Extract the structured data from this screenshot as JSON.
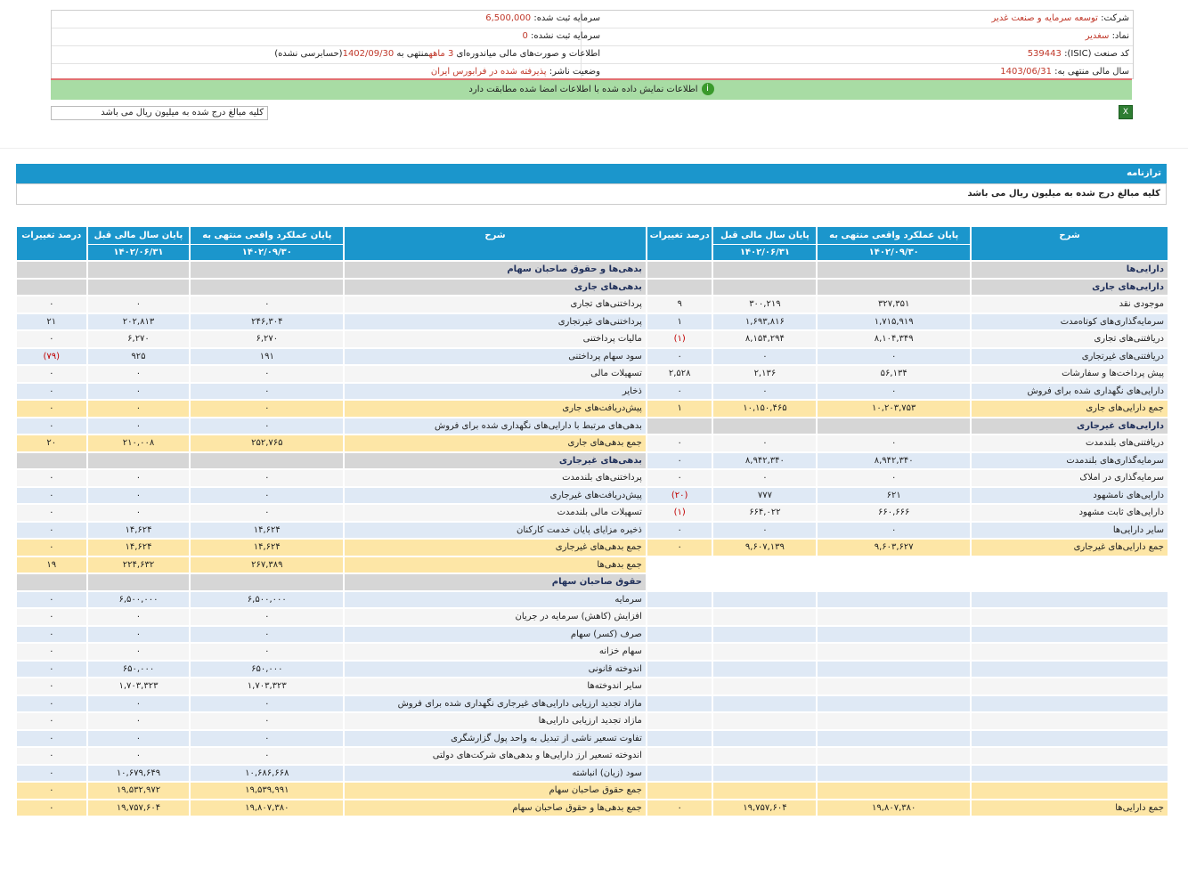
{
  "info": {
    "company_label": "شرکت:",
    "company": "توسعه سرمایه و صنعت غدیر",
    "symbol_label": "نماد:",
    "symbol": "سغدیر",
    "isic_label": "کد صنعت (ISIC):",
    "isic": "539443",
    "fiscal_label": "سال مالی منتهی به:",
    "fiscal": "1403/06/31",
    "reg_capital_label": "سرمایه ثبت شده:",
    "reg_capital": "6,500,000",
    "unreg_capital_label": "سرمایه ثبت نشده:",
    "unreg_capital": "0",
    "report_prefix": "اطلاعات و صورت‌های مالی میاندوره‌ای",
    "report_period": "3 ماهه",
    "report_mid": "منتهی به",
    "report_date": "1402/09/30",
    "report_suffix": "(حسابرسی نشده)",
    "publisher_label": "وضعیت ناشر:",
    "publisher": "پذیرفته شده در فرابورس ایران"
  },
  "banner": "اطلاعات نمایش داده شده با اطلاعات امضا شده مطابقت دارد",
  "note": "کلیه مبالغ درج شده به میلیون ریال می باشد",
  "panel": {
    "title": "ترازنامه",
    "subtitle": "کلیه مبالغ درج شده به میلیون ریال می باشد"
  },
  "headers": {
    "desc": "شرح",
    "current": "پایان عملکرد واقعی منتهی به",
    "current_date": "۱۴۰۲/۰۹/۳۰",
    "prev": "پایان سال مالی قبل",
    "prev_date": "۱۴۰۲/۰۶/۳۱",
    "pct": "درصد تغییرات"
  },
  "rows": [
    {
      "t": "head",
      "r": [
        "دارایی‌ها",
        "",
        "",
        ""
      ],
      "l": [
        "بدهی‌ها و حقوق صاحبان سهام",
        "",
        "",
        ""
      ]
    },
    {
      "t": "head",
      "r": [
        "دارایی‌های جاری",
        "",
        "",
        ""
      ],
      "l": [
        "بدهی‌های جاری",
        "",
        "",
        ""
      ]
    },
    {
      "t": "white",
      "r": [
        "موجودی نقد",
        "۳۲۷,۳۵۱",
        "۳۰۰,۲۱۹",
        "۹"
      ],
      "l": [
        "پرداختنی‌های تجاری",
        "۰",
        "۰",
        "۰"
      ]
    },
    {
      "t": "blue",
      "r": [
        "سرمایه‌گذاری‌های کوتاه‌مدت",
        "۱,۷۱۵,۹۱۹",
        "۱,۶۹۳,۸۱۶",
        "۱"
      ],
      "l": [
        "پرداختنی‌های غیرتجاری",
        "۲۴۶,۳۰۴",
        "۲۰۲,۸۱۳",
        "۲۱"
      ]
    },
    {
      "t": "white",
      "r": [
        "دریافتنی‌های تجاری",
        "۸,۱۰۴,۳۴۹",
        "۸,۱۵۴,۲۹۴",
        "(۱)"
      ],
      "l": [
        "مالیات پرداختنی",
        "۶,۲۷۰",
        "۶,۲۷۰",
        "۰"
      ]
    },
    {
      "t": "blue",
      "r": [
        "دریافتنی‌های غیرتجاری",
        "۰",
        "۰",
        "۰"
      ],
      "l": [
        "سود سهام پرداختنی",
        "۱۹۱",
        "۹۲۵",
        "(۷۹)"
      ]
    },
    {
      "t": "white",
      "r": [
        "پیش پرداخت‌ها و سفارشات",
        "۵۶,۱۳۴",
        "۲,۱۳۶",
        "۲,۵۲۸"
      ],
      "l": [
        "تسهیلات مالی",
        "۰",
        "۰",
        "۰"
      ]
    },
    {
      "t": "blue",
      "r": [
        "دارایی‌های نگهداری شده برای فروش",
        "۰",
        "۰",
        "۰"
      ],
      "l": [
        "ذخایر",
        "۰",
        "۰",
        "۰"
      ]
    },
    {
      "t": "total",
      "r": [
        "جمع دارایی‌های جاری",
        "۱۰,۲۰۳,۷۵۳",
        "۱۰,۱۵۰,۴۶۵",
        "۱"
      ],
      "l": [
        "پیش‌دریافت‌های جاری",
        "۰",
        "۰",
        "۰"
      ]
    },
    {
      "t": "blue",
      "rh": true,
      "r": [
        "دارایی‌های غیرجاری",
        "",
        "",
        ""
      ],
      "l": [
        "بدهی‌های مرتبط با دارایی‌های نگهداری شده برای فروش",
        "۰",
        "۰",
        "۰"
      ]
    },
    {
      "t": "white",
      "lt": true,
      "r": [
        "دریافتنی‌های بلندمدت",
        "۰",
        "۰",
        "۰"
      ],
      "l": [
        "جمع بدهی‌های جاری",
        "۲۵۲,۷۶۵",
        "۲۱۰,۰۰۸",
        "۲۰"
      ]
    },
    {
      "t": "blue",
      "lh": true,
      "r": [
        "سرمایه‌گذاری‌های بلندمدت",
        "۸,۹۴۲,۳۴۰",
        "۸,۹۴۲,۳۴۰",
        "۰"
      ],
      "l": [
        "بدهی‌های غیرجاری",
        "",
        "",
        ""
      ]
    },
    {
      "t": "white",
      "r": [
        "سرمایه‌گذاری در املاک",
        "۰",
        "۰",
        "۰"
      ],
      "l": [
        "پرداختنی‌های بلندمدت",
        "۰",
        "۰",
        "۰"
      ]
    },
    {
      "t": "blue",
      "r": [
        "دارایی‌های نامشهود",
        "۶۲۱",
        "۷۷۷",
        "(۲۰)"
      ],
      "l": [
        "پیش‌دریافت‌های غیرجاری",
        "۰",
        "۰",
        "۰"
      ]
    },
    {
      "t": "white",
      "r": [
        "دارایی‌های ثابت مشهود",
        "۶۶۰,۶۶۶",
        "۶۶۴,۰۲۲",
        "(۱)"
      ],
      "l": [
        "تسهیلات مالی بلندمدت",
        "۰",
        "۰",
        "۰"
      ]
    },
    {
      "t": "blue",
      "r": [
        "سایر دارایی‌ها",
        "۰",
        "۰",
        "۰"
      ],
      "l": [
        "ذخیره مزایای پایان خدمت کارکنان",
        "۱۴,۶۲۴",
        "۱۴,۶۲۴",
        "۰"
      ]
    },
    {
      "t": "total",
      "r": [
        "جمع دارایی‌های غیرجاری",
        "۹,۶۰۳,۶۲۷",
        "۹,۶۰۷,۱۳۹",
        "۰"
      ],
      "l": [
        "جمع بدهی‌های غیرجاری",
        "۱۴,۶۲۴",
        "۱۴,۶۲۴",
        "۰"
      ]
    },
    {
      "t": "total",
      "er": true,
      "r": [
        "",
        "",
        "",
        ""
      ],
      "l": [
        "جمع بدهی‌ها",
        "۲۶۷,۳۸۹",
        "۲۲۴,۶۳۲",
        "۱۹"
      ]
    },
    {
      "t": "head",
      "er": true,
      "r": [
        "",
        "",
        "",
        ""
      ],
      "l": [
        "حقوق صاحبان سهام",
        "",
        "",
        ""
      ]
    },
    {
      "t": "blue",
      "r": [
        "",
        "",
        "",
        ""
      ],
      "l": [
        "سرمایه",
        "۶,۵۰۰,۰۰۰",
        "۶,۵۰۰,۰۰۰",
        "۰"
      ]
    },
    {
      "t": "white",
      "r": [
        "",
        "",
        "",
        ""
      ],
      "l": [
        "افزایش (کاهش) سرمایه در جریان",
        "۰",
        "۰",
        "۰"
      ]
    },
    {
      "t": "blue",
      "r": [
        "",
        "",
        "",
        ""
      ],
      "l": [
        "صرف (کسر) سهام",
        "۰",
        "۰",
        "۰"
      ]
    },
    {
      "t": "white",
      "r": [
        "",
        "",
        "",
        ""
      ],
      "l": [
        "سهام خزانه",
        "۰",
        "۰",
        "۰"
      ]
    },
    {
      "t": "blue",
      "r": [
        "",
        "",
        "",
        ""
      ],
      "l": [
        "اندوخته قانونی",
        "۶۵۰,۰۰۰",
        "۶۵۰,۰۰۰",
        "۰"
      ]
    },
    {
      "t": "white",
      "r": [
        "",
        "",
        "",
        ""
      ],
      "l": [
        "سایر اندوخته‌ها",
        "۱,۷۰۳,۳۲۳",
        "۱,۷۰۳,۳۲۳",
        "۰"
      ]
    },
    {
      "t": "blue",
      "r": [
        "",
        "",
        "",
        ""
      ],
      "l": [
        "مازاد تجدید ارزیابی دارایی‌های غیرجاری نگهداری شده برای فروش",
        "۰",
        "۰",
        "۰"
      ]
    },
    {
      "t": "white",
      "r": [
        "",
        "",
        "",
        ""
      ],
      "l": [
        "مازاد تجدید ارزیابی دارایی‌ها",
        "۰",
        "۰",
        "۰"
      ]
    },
    {
      "t": "blue",
      "r": [
        "",
        "",
        "",
        ""
      ],
      "l": [
        "تفاوت تسعیر ناشی از تبدیل به واحد پول گزارشگری",
        "۰",
        "۰",
        "۰"
      ]
    },
    {
      "t": "white",
      "r": [
        "",
        "",
        "",
        ""
      ],
      "l": [
        "اندوخته تسعیر ارز دارایی‌ها و بدهی‌های شرکت‌های دولتی",
        "۰",
        "۰",
        "۰"
      ]
    },
    {
      "t": "blue",
      "r": [
        "",
        "",
        "",
        ""
      ],
      "l": [
        "سود (زیان) انباشته",
        "۱۰,۶۸۶,۶۶۸",
        "۱۰,۶۷۹,۶۴۹",
        "۰"
      ]
    },
    {
      "t": "total",
      "r": [
        "",
        "",
        "",
        ""
      ],
      "l": [
        "جمع حقوق صاحبان سهام",
        "۱۹,۵۳۹,۹۹۱",
        "۱۹,۵۳۲,۹۷۲",
        "۰"
      ]
    },
    {
      "t": "total",
      "r": [
        "جمع دارایی‌ها",
        "۱۹,۸۰۷,۳۸۰",
        "۱۹,۷۵۷,۶۰۴",
        "۰"
      ],
      "l": [
        "جمع بدهی‌ها و حقوق صاحبان سهام",
        "۱۹,۸۰۷,۳۸۰",
        "۱۹,۷۵۷,۶۰۴",
        "۰"
      ]
    }
  ],
  "colors": {
    "header_blue": "#1b96cc",
    "total_yellow": "#fde6a6",
    "row_blue": "#dfe9f5",
    "section_grey": "#d6d6d6",
    "negative": "#c00000"
  }
}
